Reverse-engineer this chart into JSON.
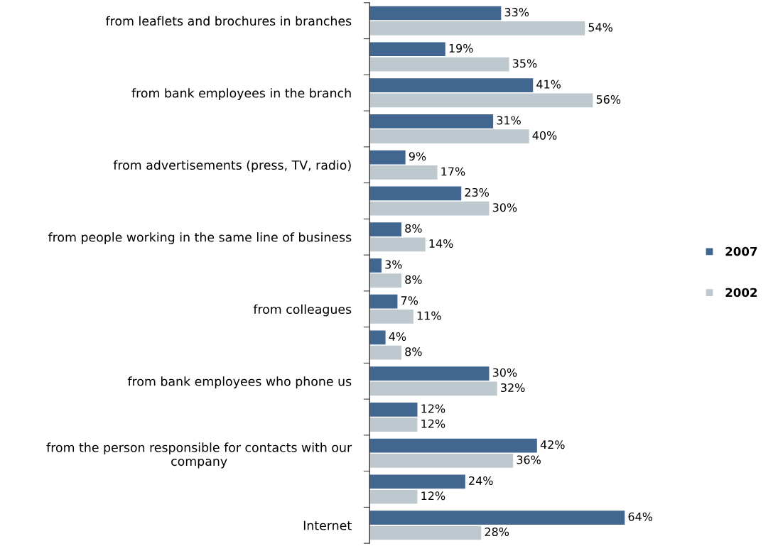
{
  "chart_data": {
    "type": "bar",
    "orientation": "horizontal",
    "legend": "right",
    "data_labels": true,
    "categories": [
      "from leaflets and brochures in branches",
      null,
      "from bank employees in the branch",
      null,
      "from advertisements (press, TV, radio)",
      null,
      "from people working in the same line of business",
      null,
      "from colleagues",
      null,
      "from bank employees who phone us",
      null,
      "from the person responsible for contacts with our\ncompany",
      null,
      "Internet"
    ],
    "series": [
      {
        "name": "2007",
        "color": "#41668f",
        "values": [
          33,
          19,
          41,
          31,
          9,
          23,
          8,
          3,
          7,
          4,
          30,
          12,
          42,
          24,
          64
        ],
        "value_labels": [
          "33%",
          "19%",
          "41%",
          "31%",
          "9%",
          "23%",
          "8%",
          "3%",
          "7%",
          "4%",
          "30%",
          "12%",
          "42%",
          "24%",
          "64%"
        ]
      },
      {
        "name": "2002",
        "color": "#bdc9cf",
        "values": [
          54,
          35,
          56,
          40,
          17,
          30,
          14,
          8,
          11,
          8,
          32,
          12,
          36,
          12,
          28
        ],
        "value_labels": [
          "54%",
          "35%",
          "56%",
          "40%",
          "17%",
          "30%",
          "14%",
          "8%",
          "11%",
          "8%",
          "32%",
          "12%",
          "36%",
          "12%",
          "28%"
        ]
      }
    ]
  }
}
